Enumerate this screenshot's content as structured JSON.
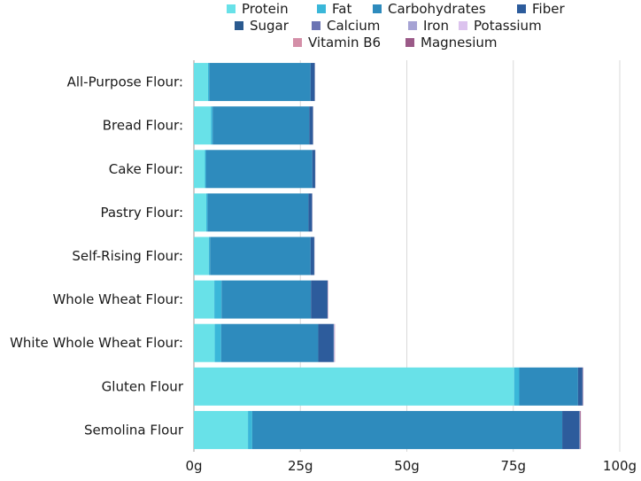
{
  "chart_data": {
    "type": "bar",
    "orientation": "horizontal",
    "stacked": true,
    "categories": [
      "All-Purpose Flour:",
      "Bread Flour:",
      "Cake Flour:",
      "Pastry Flour:",
      "Self-Rising Flour:",
      "Whole Wheat Flour:",
      "White Whole Wheat Flour:",
      "Gluten Flour",
      "Semolina Flour"
    ],
    "series": [
      {
        "name": "Protein",
        "color": "#68e1e8",
        "values": [
          3.3,
          4.0,
          2.6,
          2.9,
          3.5,
          4.8,
          4.9,
          75.2,
          12.7
        ]
      },
      {
        "name": "Fat",
        "color": "#3ab7d9",
        "values": [
          0.3,
          0.4,
          0.2,
          0.3,
          0.3,
          1.7,
          1.5,
          1.2,
          1.0
        ]
      },
      {
        "name": "Carbohydrates",
        "color": "#2e8bbd",
        "values": [
          23.8,
          22.7,
          25.0,
          23.7,
          23.6,
          21.0,
          22.8,
          13.8,
          72.8
        ]
      },
      {
        "name": "Fiber",
        "color": "#2d5c9c",
        "values": [
          0.9,
          0.8,
          0.6,
          0.8,
          0.8,
          3.8,
          3.6,
          1.0,
          4.0
        ]
      },
      {
        "name": "Sugar",
        "color": "#2b5a8f",
        "values": [
          0.1,
          0.1,
          0.1,
          0.1,
          0.1,
          0.1,
          0.1,
          0.1,
          0.1
        ]
      },
      {
        "name": "Calcium",
        "color": "#6b74b3",
        "values": [
          0.01,
          0.01,
          0.01,
          0.01,
          0.01,
          0.02,
          0.02,
          0.05,
          0.02
        ]
      },
      {
        "name": "Iron",
        "color": "#a6a3d4",
        "values": [
          0.01,
          0.01,
          0.01,
          0.01,
          0.01,
          0.01,
          0.01,
          0.01,
          0.01
        ]
      },
      {
        "name": "Potassium",
        "color": "#dcc3ee",
        "values": [
          0.03,
          0.03,
          0.03,
          0.03,
          0.03,
          0.12,
          0.12,
          0.03,
          0.06
        ]
      },
      {
        "name": "Vitamin B6",
        "color": "#d48fa8",
        "values": [
          0.0,
          0.0,
          0.0,
          0.0,
          0.0,
          0.01,
          0.01,
          0.0,
          0.0
        ]
      },
      {
        "name": "Magnesium",
        "color": "#9b5a88",
        "values": [
          0.01,
          0.01,
          0.01,
          0.01,
          0.01,
          0.04,
          0.04,
          0.06,
          0.18
        ]
      }
    ],
    "xticks": [
      "0g",
      "25g",
      "50g",
      "75g",
      "100g"
    ],
    "xlim": [
      0,
      100
    ],
    "grid": true,
    "legend": "top"
  }
}
